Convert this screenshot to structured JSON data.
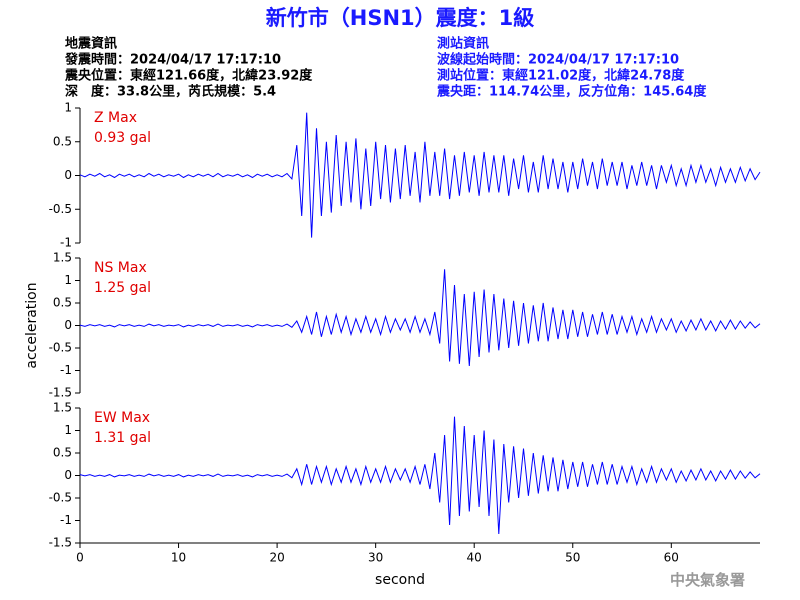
{
  "header": {
    "title": "新竹市（HSN1）震度：1級",
    "left": [
      "地震資訊",
      "發震時間：2024/04/17 17:17:10",
      "震央位置：東經121.66度，北緯23.92度",
      "深　度：33.8公里，芮氏規模：5.4"
    ],
    "right": [
      "測站資訊",
      "波線起始時間：2024/04/17 17:17:10",
      "測站位置：東經121.02度，北緯24.78度",
      "震央距：114.74公里，反方位角：145.64度"
    ],
    "footer": "中央氣象署"
  },
  "chart_data": [
    {
      "type": "line",
      "annotation": [
        "Z Max",
        "0.93 gal"
      ],
      "xlim": [
        0,
        69
      ],
      "ylim": [
        -1,
        1
      ],
      "yticks": [
        -1,
        -0.5,
        0,
        0.5,
        1
      ],
      "x": [
        0,
        0.5,
        1,
        1.5,
        2,
        2.5,
        3,
        3.5,
        4,
        4.5,
        5,
        5.5,
        6,
        6.5,
        7,
        7.5,
        8,
        8.5,
        9,
        9.5,
        10,
        10.5,
        11,
        11.5,
        12,
        12.5,
        13,
        13.5,
        14,
        14.5,
        15,
        15.5,
        16,
        16.5,
        17,
        17.5,
        18,
        18.5,
        19,
        19.5,
        20,
        20.5,
        21,
        21.5,
        22,
        22.5,
        23,
        23.5,
        24,
        24.5,
        25,
        25.5,
        26,
        26.5,
        27,
        27.5,
        28,
        28.5,
        29,
        29.5,
        30,
        30.5,
        31,
        31.5,
        32,
        32.5,
        33,
        33.5,
        34,
        34.5,
        35,
        35.5,
        36,
        36.5,
        37,
        37.5,
        38,
        38.5,
        39,
        39.5,
        40,
        40.5,
        41,
        41.5,
        42,
        42.5,
        43,
        43.5,
        44,
        44.5,
        45,
        45.5,
        46,
        46.5,
        47,
        47.5,
        48,
        48.5,
        49,
        49.5,
        50,
        50.5,
        51,
        51.5,
        52,
        52.5,
        53,
        53.5,
        54,
        54.5,
        55,
        55.5,
        56,
        56.5,
        57,
        57.5,
        58,
        58.5,
        59,
        59.5,
        60,
        60.5,
        61,
        61.5,
        62,
        62.5,
        63,
        63.5,
        64,
        64.5,
        65,
        65.5,
        66,
        66.5,
        67,
        67.5,
        68,
        68.5,
        69
      ],
      "series": [
        {
          "color": "#0000ff",
          "values": [
            0.01,
            -0.02,
            0.02,
            -0.01,
            0.03,
            -0.02,
            0.01,
            -0.03,
            0.02,
            -0.01,
            0.02,
            -0.02,
            0.01,
            -0.02,
            0.03,
            -0.01,
            0.02,
            -0.02,
            0.01,
            -0.01,
            0.02,
            -0.03,
            0.01,
            -0.02,
            0.02,
            -0.01,
            0.02,
            -0.02,
            0.03,
            -0.02,
            0.01,
            -0.01,
            0.02,
            -0.02,
            0.01,
            -0.03,
            0.02,
            -0.01,
            0.02,
            -0.02,
            0.01,
            -0.02,
            0.03,
            -0.05,
            0.45,
            -0.6,
            0.93,
            -0.92,
            0.7,
            -0.6,
            0.5,
            -0.55,
            0.6,
            -0.45,
            0.5,
            -0.4,
            0.55,
            -0.5,
            0.4,
            -0.45,
            0.5,
            -0.35,
            0.45,
            -0.4,
            0.4,
            -0.35,
            0.45,
            -0.3,
            0.35,
            -0.4,
            0.5,
            -0.3,
            0.35,
            -0.3,
            0.4,
            -0.35,
            0.3,
            -0.3,
            0.35,
            -0.25,
            0.3,
            -0.3,
            0.35,
            -0.25,
            0.3,
            -0.25,
            0.3,
            -0.3,
            0.25,
            -0.2,
            0.3,
            -0.25,
            0.2,
            -0.25,
            0.3,
            -0.2,
            0.25,
            -0.2,
            0.2,
            -0.25,
            0.2,
            -0.2,
            0.25,
            -0.15,
            0.2,
            -0.2,
            0.25,
            -0.15,
            0.2,
            -0.15,
            0.2,
            -0.2,
            0.15,
            -0.15,
            0.2,
            -0.15,
            0.15,
            -0.2,
            0.15,
            -0.1,
            0.15,
            -0.15,
            0.1,
            -0.15,
            0.15,
            -0.1,
            0.15,
            -0.1,
            0.1,
            -0.15,
            0.12,
            -0.1,
            0.1,
            -0.1,
            0.12,
            -0.08,
            0.1,
            -0.06,
            0.05
          ]
        }
      ]
    },
    {
      "type": "line",
      "annotation": [
        "NS Max",
        "1.25 gal"
      ],
      "ylabel": "acceleration",
      "xlim": [
        0,
        69
      ],
      "ylim": [
        -1.5,
        1.5
      ],
      "yticks": [
        -1.5,
        -1,
        -0.5,
        0,
        0.5,
        1,
        1.5
      ],
      "x": [
        0,
        0.5,
        1,
        1.5,
        2,
        2.5,
        3,
        3.5,
        4,
        4.5,
        5,
        5.5,
        6,
        6.5,
        7,
        7.5,
        8,
        8.5,
        9,
        9.5,
        10,
        10.5,
        11,
        11.5,
        12,
        12.5,
        13,
        13.5,
        14,
        14.5,
        15,
        15.5,
        16,
        16.5,
        17,
        17.5,
        18,
        18.5,
        19,
        19.5,
        20,
        20.5,
        21,
        21.5,
        22,
        22.5,
        23,
        23.5,
        24,
        24.5,
        25,
        25.5,
        26,
        26.5,
        27,
        27.5,
        28,
        28.5,
        29,
        29.5,
        30,
        30.5,
        31,
        31.5,
        32,
        32.5,
        33,
        33.5,
        34,
        34.5,
        35,
        35.5,
        36,
        36.5,
        37,
        37.5,
        38,
        38.5,
        39,
        39.5,
        40,
        40.5,
        41,
        41.5,
        42,
        42.5,
        43,
        43.5,
        44,
        44.5,
        45,
        45.5,
        46,
        46.5,
        47,
        47.5,
        48,
        48.5,
        49,
        49.5,
        50,
        50.5,
        51,
        51.5,
        52,
        52.5,
        53,
        53.5,
        54,
        54.5,
        55,
        55.5,
        56,
        56.5,
        57,
        57.5,
        58,
        58.5,
        59,
        59.5,
        60,
        60.5,
        61,
        61.5,
        62,
        62.5,
        63,
        63.5,
        64,
        64.5,
        65,
        65.5,
        66,
        66.5,
        67,
        67.5,
        68,
        68.5,
        69
      ],
      "series": [
        {
          "color": "#0000ff",
          "values": [
            0.01,
            -0.02,
            0.02,
            -0.01,
            0.02,
            -0.02,
            0.01,
            -0.03,
            0.02,
            -0.01,
            0.02,
            -0.02,
            0.01,
            -0.02,
            0.03,
            -0.01,
            0.02,
            -0.02,
            0.01,
            -0.01,
            0.02,
            -0.03,
            0.01,
            -0.02,
            0.02,
            -0.01,
            0.02,
            -0.02,
            0.03,
            -0.02,
            0.01,
            -0.01,
            0.02,
            -0.02,
            0.01,
            -0.03,
            0.02,
            -0.01,
            0.02,
            -0.02,
            0.01,
            -0.02,
            0.03,
            -0.04,
            0.1,
            -0.15,
            0.2,
            -0.2,
            0.3,
            -0.25,
            0.2,
            -0.2,
            0.25,
            -0.15,
            0.2,
            -0.2,
            0.15,
            -0.15,
            0.2,
            -0.15,
            0.15,
            -0.2,
            0.2,
            -0.15,
            0.15,
            -0.1,
            0.15,
            -0.15,
            0.2,
            -0.15,
            0.15,
            -0.2,
            0.3,
            -0.4,
            1.25,
            -0.8,
            0.9,
            -0.85,
            0.7,
            -0.9,
            0.75,
            -0.7,
            0.8,
            -0.6,
            0.7,
            -0.55,
            0.6,
            -0.5,
            0.55,
            -0.45,
            0.5,
            -0.4,
            0.45,
            -0.35,
            0.5,
            -0.35,
            0.4,
            -0.3,
            0.35,
            -0.3,
            0.35,
            -0.25,
            0.3,
            -0.25,
            0.25,
            -0.2,
            0.3,
            -0.2,
            0.25,
            -0.2,
            0.2,
            -0.15,
            0.2,
            -0.2,
            0.15,
            -0.15,
            0.2,
            -0.15,
            0.15,
            -0.1,
            0.15,
            -0.15,
            0.1,
            -0.12,
            0.12,
            -0.1,
            0.15,
            -0.1,
            0.1,
            -0.12,
            0.1,
            -0.08,
            0.12,
            -0.08,
            0.1,
            -0.06,
            0.08,
            -0.05,
            0.04
          ]
        }
      ]
    },
    {
      "type": "line",
      "annotation": [
        "EW Max",
        "1.31 gal"
      ],
      "xlabel": "second",
      "xlim": [
        0,
        69
      ],
      "ylim": [
        -1.5,
        1.5
      ],
      "yticks": [
        -1.5,
        -1,
        -0.5,
        0,
        0.5,
        1,
        1.5
      ],
      "xticks": [
        0,
        10,
        20,
        30,
        40,
        50,
        60
      ],
      "x": [
        0,
        0.5,
        1,
        1.5,
        2,
        2.5,
        3,
        3.5,
        4,
        4.5,
        5,
        5.5,
        6,
        6.5,
        7,
        7.5,
        8,
        8.5,
        9,
        9.5,
        10,
        10.5,
        11,
        11.5,
        12,
        12.5,
        13,
        13.5,
        14,
        14.5,
        15,
        15.5,
        16,
        16.5,
        17,
        17.5,
        18,
        18.5,
        19,
        19.5,
        20,
        20.5,
        21,
        21.5,
        22,
        22.5,
        23,
        23.5,
        24,
        24.5,
        25,
        25.5,
        26,
        26.5,
        27,
        27.5,
        28,
        28.5,
        29,
        29.5,
        30,
        30.5,
        31,
        31.5,
        32,
        32.5,
        33,
        33.5,
        34,
        34.5,
        35,
        35.5,
        36,
        36.5,
        37,
        37.5,
        38,
        38.5,
        39,
        39.5,
        40,
        40.5,
        41,
        41.5,
        42,
        42.5,
        43,
        43.5,
        44,
        44.5,
        45,
        45.5,
        46,
        46.5,
        47,
        47.5,
        48,
        48.5,
        49,
        49.5,
        50,
        50.5,
        51,
        51.5,
        52,
        52.5,
        53,
        53.5,
        54,
        54.5,
        55,
        55.5,
        56,
        56.5,
        57,
        57.5,
        58,
        58.5,
        59,
        59.5,
        60,
        60.5,
        61,
        61.5,
        62,
        62.5,
        63,
        63.5,
        64,
        64.5,
        65,
        65.5,
        66,
        66.5,
        67,
        67.5,
        68,
        68.5,
        69
      ],
      "series": [
        {
          "color": "#0000ff",
          "values": [
            0.02,
            -0.01,
            0.02,
            -0.02,
            0.01,
            -0.02,
            0.02,
            -0.03,
            0.01,
            -0.01,
            0.02,
            -0.02,
            0.01,
            -0.02,
            0.03,
            -0.01,
            0.02,
            -0.02,
            0.01,
            -0.02,
            0.02,
            -0.03,
            0.01,
            -0.02,
            0.02,
            -0.01,
            0.02,
            -0.02,
            0.03,
            -0.02,
            0.01,
            -0.01,
            0.02,
            -0.02,
            0.01,
            -0.03,
            0.02,
            -0.01,
            0.02,
            -0.02,
            0.01,
            -0.02,
            0.03,
            -0.05,
            0.15,
            -0.2,
            0.25,
            -0.2,
            0.2,
            -0.15,
            0.2,
            -0.2,
            0.15,
            -0.15,
            0.2,
            -0.15,
            0.15,
            -0.2,
            0.2,
            -0.15,
            0.15,
            -0.15,
            0.2,
            -0.15,
            0.15,
            -0.1,
            0.15,
            -0.15,
            0.2,
            -0.2,
            0.25,
            -0.3,
            0.5,
            -0.6,
            0.9,
            -1.1,
            1.31,
            -0.9,
            1.1,
            -0.8,
            0.9,
            -0.7,
            1.0,
            -0.9,
            0.8,
            -1.3,
            0.7,
            -0.6,
            0.65,
            -0.5,
            0.6,
            -0.45,
            0.5,
            -0.4,
            0.45,
            -0.35,
            0.4,
            -0.35,
            0.35,
            -0.3,
            0.3,
            -0.25,
            0.3,
            -0.25,
            0.25,
            -0.2,
            0.3,
            -0.2,
            0.25,
            -0.2,
            0.2,
            -0.15,
            0.2,
            -0.2,
            0.15,
            -0.15,
            0.2,
            -0.15,
            0.15,
            -0.1,
            0.15,
            -0.15,
            0.1,
            -0.12,
            0.12,
            -0.1,
            0.15,
            -0.1,
            0.1,
            -0.12,
            0.1,
            -0.08,
            0.12,
            -0.08,
            0.1,
            -0.06,
            0.08,
            -0.05,
            0.04
          ]
        }
      ]
    }
  ]
}
